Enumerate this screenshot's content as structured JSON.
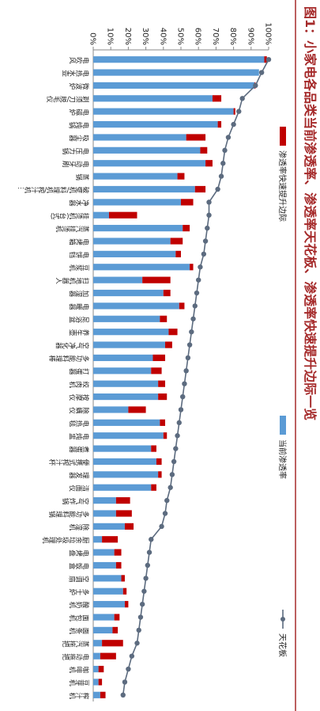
{
  "chart_data": {
    "type": "bar",
    "title": "图1：小家电各品类当前渗透率、渗透率天花板、渗透率快速提升边际一览",
    "categories": [
      "电吹风",
      "电热水壶",
      "微波炉",
      "剃须刀/脱毛仪",
      "电磁炉",
      "电炖锅",
      "吸尘器",
      "电压力锅",
      "电动牙刷",
      "蒸锅",
      "破壁机/料理机/榨汁机…",
      "净水器",
      "挂烫机(台式)",
      "蒸汽挂烫机",
      "电烤箱",
      "电饼铛",
      "豆浆机",
      "扫地机器人",
      "加湿器",
      "电暖器",
      "足浴盆",
      "养生壶",
      "空气净化器",
      "多功能料理棒",
      "打蛋器",
      "绞肉机",
      "按摩仪",
      "除螨仪",
      "电热毯",
      "电炖盅",
      "煮蛋器",
      "便携式榨汁杯",
      "理发器",
      "洁面仪",
      "空气炸锅",
      "多功能料理锅",
      "除湿机",
      "厨余垃圾处理机",
      "电烤盘",
      "电饭盒",
      "空调扇",
      "多士炉",
      "酸奶机",
      "面包机",
      "面条机",
      "蒸汽拖把",
      "电动拖把",
      "咖啡机",
      "豆芽机",
      "榨汁机"
    ],
    "series": [
      {
        "name": "当前渗透率",
        "color": "#5b9bd5",
        "values": [
          97.5,
          94.5,
          92,
          68,
          80,
          71,
          53,
          61,
          64,
          48,
          58,
          50,
          9,
          51,
          44,
          47,
          55,
          28,
          40,
          49,
          38,
          43,
          41,
          34,
          33,
          37,
          37,
          20,
          38,
          40,
          33,
          36,
          37,
          33,
          13,
          13,
          18,
          5,
          12,
          13,
          16,
          17,
          18,
          12,
          11,
          5,
          4,
          3,
          3,
          4
        ]
      },
      {
        "name": "渗透率快速提升边际",
        "color": "#c00000",
        "stacked": true,
        "values": [
          1.5,
          0,
          0.5,
          5,
          1,
          2,
          11,
          4,
          4,
          4,
          6,
          7,
          16,
          4,
          7,
          3,
          2,
          16,
          4,
          3,
          4,
          5,
          4,
          7,
          6,
          4,
          5,
          10,
          3,
          2,
          3,
          3,
          2,
          3,
          8,
          9,
          5,
          9,
          4,
          3,
          2,
          2,
          2,
          3,
          3,
          12,
          9,
          3,
          2,
          3
        ]
      },
      {
        "name": "天花板",
        "color": "#5c6b7f",
        "type": "line",
        "values": [
          100,
          96,
          92.5,
          85,
          83,
          80,
          77,
          75,
          74,
          73,
          71,
          66,
          66,
          65,
          64,
          63,
          61,
          60,
          59,
          58,
          57,
          56,
          55,
          54,
          53,
          52,
          51,
          50,
          49,
          48,
          47,
          46,
          45,
          44,
          42,
          41,
          39,
          33,
          32,
          31,
          30,
          29,
          28,
          27,
          26,
          25,
          22,
          20,
          18,
          17
        ]
      }
    ],
    "ylim": [
      0,
      100
    ],
    "yticks": [
      {
        "value": 0,
        "label": "0%"
      },
      {
        "value": 10,
        "label": "10%"
      },
      {
        "value": 20,
        "label": "20%"
      },
      {
        "value": 30,
        "label": "30%"
      },
      {
        "value": 40,
        "label": "40%"
      },
      {
        "value": 50,
        "label": "50%"
      },
      {
        "value": 60,
        "label": "60%"
      },
      {
        "value": 70,
        "label": "70%"
      },
      {
        "value": 80,
        "label": "80%"
      },
      {
        "value": 90,
        "label": "90%"
      },
      {
        "value": 100,
        "label": "100%"
      }
    ]
  }
}
